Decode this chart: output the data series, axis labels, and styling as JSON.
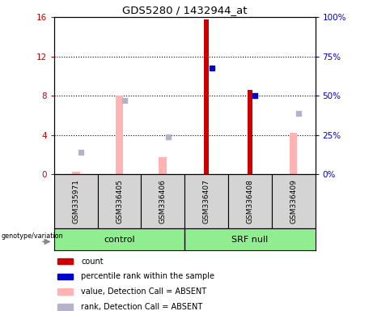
{
  "title": "GDS5280 / 1432944_at",
  "samples": [
    "GSM335971",
    "GSM336405",
    "GSM336406",
    "GSM336407",
    "GSM336408",
    "GSM336409"
  ],
  "group_labels": [
    "control",
    "SRF null"
  ],
  "count_values": [
    0.18,
    0.0,
    0.18,
    15.8,
    8.6,
    0.0
  ],
  "rank_values": [
    0.0,
    0.0,
    0.0,
    10.8,
    8.0,
    0.0
  ],
  "absent_value_bars": [
    0.25,
    8.0,
    1.7,
    0.0,
    0.0,
    4.2
  ],
  "absent_rank_dots": [
    2.2,
    7.5,
    3.8,
    0.0,
    0.0,
    6.2
  ],
  "ylim_left": [
    0,
    16
  ],
  "ylim_right": [
    0,
    100
  ],
  "yticks_left": [
    0,
    4,
    8,
    12,
    16
  ],
  "ytick_labels_left": [
    "0",
    "4",
    "8",
    "12",
    "16"
  ],
  "yticks_right": [
    0,
    25,
    50,
    75,
    100
  ],
  "ytick_labels_right": [
    "0%",
    "25%",
    "50%",
    "75%",
    "100%"
  ],
  "color_count": "#cc0000",
  "color_rank_left": "#cc0000",
  "color_rank_right": "#0000cc",
  "color_absent_value": "#ffb3b3",
  "color_absent_rank": "#b3b3cc",
  "legend_items": [
    {
      "label": "count",
      "color": "#cc0000"
    },
    {
      "label": "percentile rank within the sample",
      "color": "#0000cc"
    },
    {
      "label": "value, Detection Call = ABSENT",
      "color": "#ffb3b3"
    },
    {
      "label": "rank, Detection Call = ABSENT",
      "color": "#b3b3cc"
    }
  ]
}
